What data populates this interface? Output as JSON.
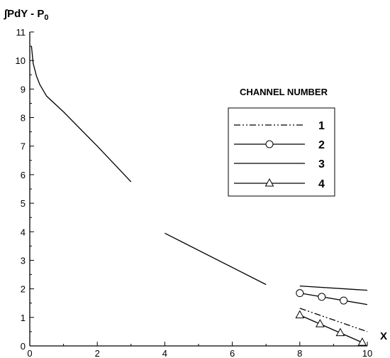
{
  "chart_data": {
    "type": "line",
    "ylabel": "∫PdY - P",
    "ylabel_subscript": "0",
    "xlabel": "X",
    "xlim": [
      0,
      10
    ],
    "ylim": [
      0,
      11
    ],
    "xticks": [
      0,
      2,
      4,
      6,
      8,
      10
    ],
    "yticks": [
      0,
      1,
      2,
      3,
      4,
      5,
      6,
      7,
      8,
      9,
      10,
      11
    ],
    "grid": false,
    "legend": {
      "title": "CHANNEL NUMBER",
      "placement": "upper-right"
    },
    "segments": [
      {
        "x": [
          0.05,
          0.1,
          0.2,
          0.3,
          0.5,
          1.0,
          2.0,
          3.0
        ],
        "y": [
          10.5,
          9.9,
          9.45,
          9.15,
          8.75,
          8.2,
          7.0,
          5.75
        ]
      },
      {
        "x": [
          4.0,
          7.0
        ],
        "y": [
          3.95,
          2.15
        ]
      }
    ],
    "series": [
      {
        "name": "1",
        "style": "dash-dot-dot",
        "marker": "none",
        "x": [
          8.0,
          10.0
        ],
        "y": [
          1.32,
          0.5
        ]
      },
      {
        "name": "2",
        "style": "solid",
        "marker": "circle",
        "x": [
          8.0,
          10.0
        ],
        "y": [
          1.85,
          1.45
        ],
        "marker_x": [
          8.0,
          8.65,
          9.3
        ]
      },
      {
        "name": "3",
        "style": "solid",
        "marker": "none",
        "x": [
          8.0,
          10.0
        ],
        "y": [
          2.1,
          1.95
        ]
      },
      {
        "name": "4",
        "style": "solid",
        "marker": "triangle",
        "x": [
          8.0,
          9.85
        ],
        "y": [
          1.08,
          0.12
        ],
        "marker_x": [
          8.0,
          8.6,
          9.2,
          9.85
        ]
      }
    ]
  }
}
